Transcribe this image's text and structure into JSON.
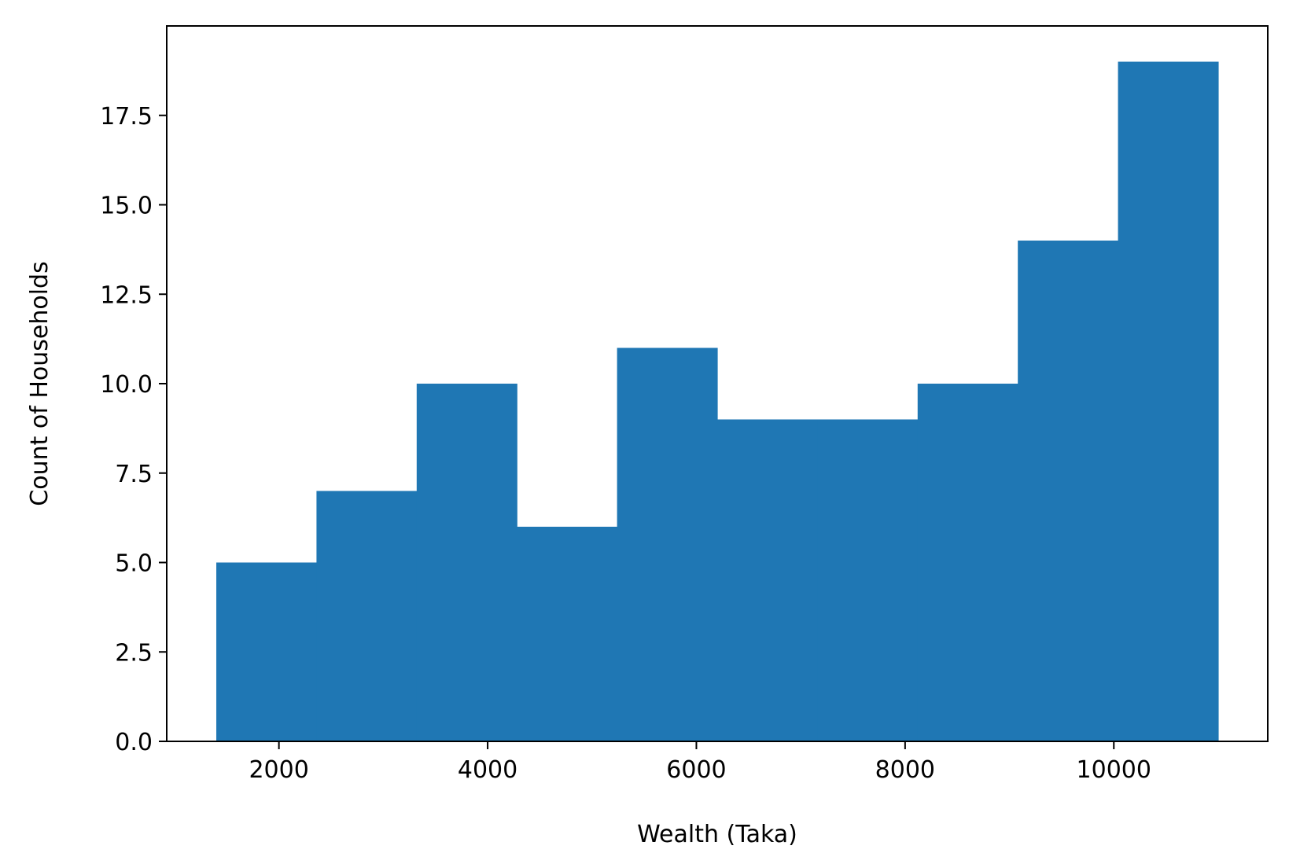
{
  "chart_data": {
    "type": "bar",
    "title": "",
    "xlabel": "Wealth (Taka)",
    "ylabel": "Count of Households",
    "bin_edges": [
      1400,
      2360,
      3320,
      4280,
      5240,
      6200,
      7160,
      8120,
      9080,
      10040,
      11000
    ],
    "values": [
      5,
      7,
      10,
      6,
      11,
      9,
      9,
      10,
      14,
      19
    ],
    "xlim": [
      925,
      11475
    ],
    "ylim": [
      0,
      20
    ],
    "xticks": [
      2000,
      4000,
      6000,
      8000,
      10000
    ],
    "xtick_labels": [
      "2000",
      "4000",
      "6000",
      "8000",
      "10000"
    ],
    "yticks": [
      0,
      2.5,
      5,
      7.5,
      10,
      12.5,
      15,
      17.5
    ],
    "ytick_labels": [
      "0.0",
      "2.5",
      "5.0",
      "7.5",
      "10.0",
      "12.5",
      "15.0",
      "17.5"
    ],
    "bar_color": "#1f77b4",
    "grid": false,
    "legend": "none"
  }
}
